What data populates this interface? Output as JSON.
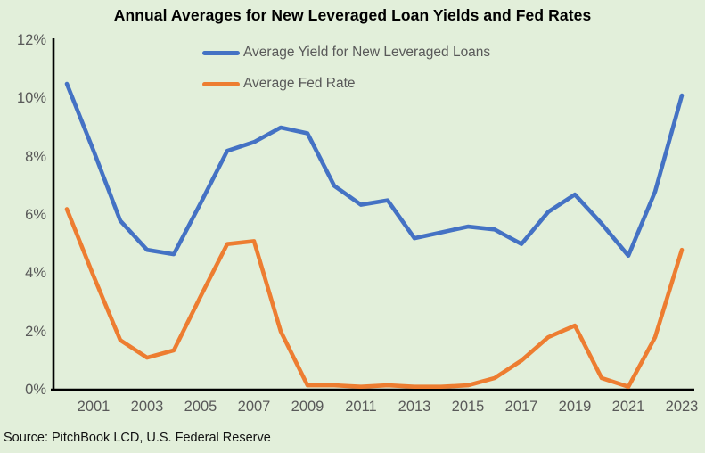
{
  "title": "Annual Averages for New Leveraged Loan Yields and Fed Rates",
  "source_note": "Source: PitchBook LCD, U.S. Federal Reserve",
  "colors": {
    "background": "#E2EFDA",
    "axis": "#000000",
    "tick_text": "#595959",
    "legend_text": "#595959",
    "loan_yield_line": "#4472C4",
    "fed_rate_line": "#ED7D31"
  },
  "chart_data": {
    "type": "line",
    "title": "Annual Averages for New Leveraged Loan Yields and Fed Rates",
    "xlabel": "",
    "ylabel": "",
    "ylim": [
      0,
      12
    ],
    "grid": false,
    "legend_position": "top-center",
    "x": [
      2000,
      2001,
      2002,
      2003,
      2004,
      2005,
      2006,
      2007,
      2008,
      2009,
      2010,
      2011,
      2012,
      2013,
      2014,
      2015,
      2016,
      2017,
      2018,
      2019,
      2020,
      2021,
      2022,
      2023
    ],
    "series": [
      {
        "name": "Average Yield for New Leveraged Loans",
        "color": "#4472C4",
        "values": [
          10.5,
          8.2,
          5.8,
          4.8,
          4.65,
          6.4,
          8.2,
          8.5,
          9.0,
          8.8,
          7.0,
          6.35,
          6.5,
          5.2,
          5.4,
          5.6,
          5.5,
          5.0,
          6.1,
          6.7,
          5.7,
          4.6,
          6.8,
          10.1
        ]
      },
      {
        "name": "Average Fed Rate",
        "color": "#ED7D31",
        "values": [
          6.2,
          3.9,
          1.7,
          1.1,
          1.35,
          3.2,
          5.0,
          5.1,
          2.0,
          0.15,
          0.15,
          0.1,
          0.15,
          0.1,
          0.1,
          0.15,
          0.4,
          1.0,
          1.8,
          2.2,
          0.4,
          0.1,
          1.8,
          4.8
        ]
      }
    ],
    "yticks": [
      {
        "value": 0,
        "label": "0%"
      },
      {
        "value": 2,
        "label": "2%"
      },
      {
        "value": 4,
        "label": "4%"
      },
      {
        "value": 6,
        "label": "6%"
      },
      {
        "value": 8,
        "label": "8%"
      },
      {
        "value": 10,
        "label": "10%"
      },
      {
        "value": 12,
        "label": "12%"
      }
    ],
    "xticks": [
      {
        "value": 2001,
        "label": "2001"
      },
      {
        "value": 2003,
        "label": "2003"
      },
      {
        "value": 2005,
        "label": "2005"
      },
      {
        "value": 2007,
        "label": "2007"
      },
      {
        "value": 2009,
        "label": "2009"
      },
      {
        "value": 2011,
        "label": "2011"
      },
      {
        "value": 2013,
        "label": "2013"
      },
      {
        "value": 2015,
        "label": "2015"
      },
      {
        "value": 2017,
        "label": "2017"
      },
      {
        "value": 2019,
        "label": "2019"
      },
      {
        "value": 2021,
        "label": "2021"
      },
      {
        "value": 2023,
        "label": "2023"
      }
    ]
  }
}
